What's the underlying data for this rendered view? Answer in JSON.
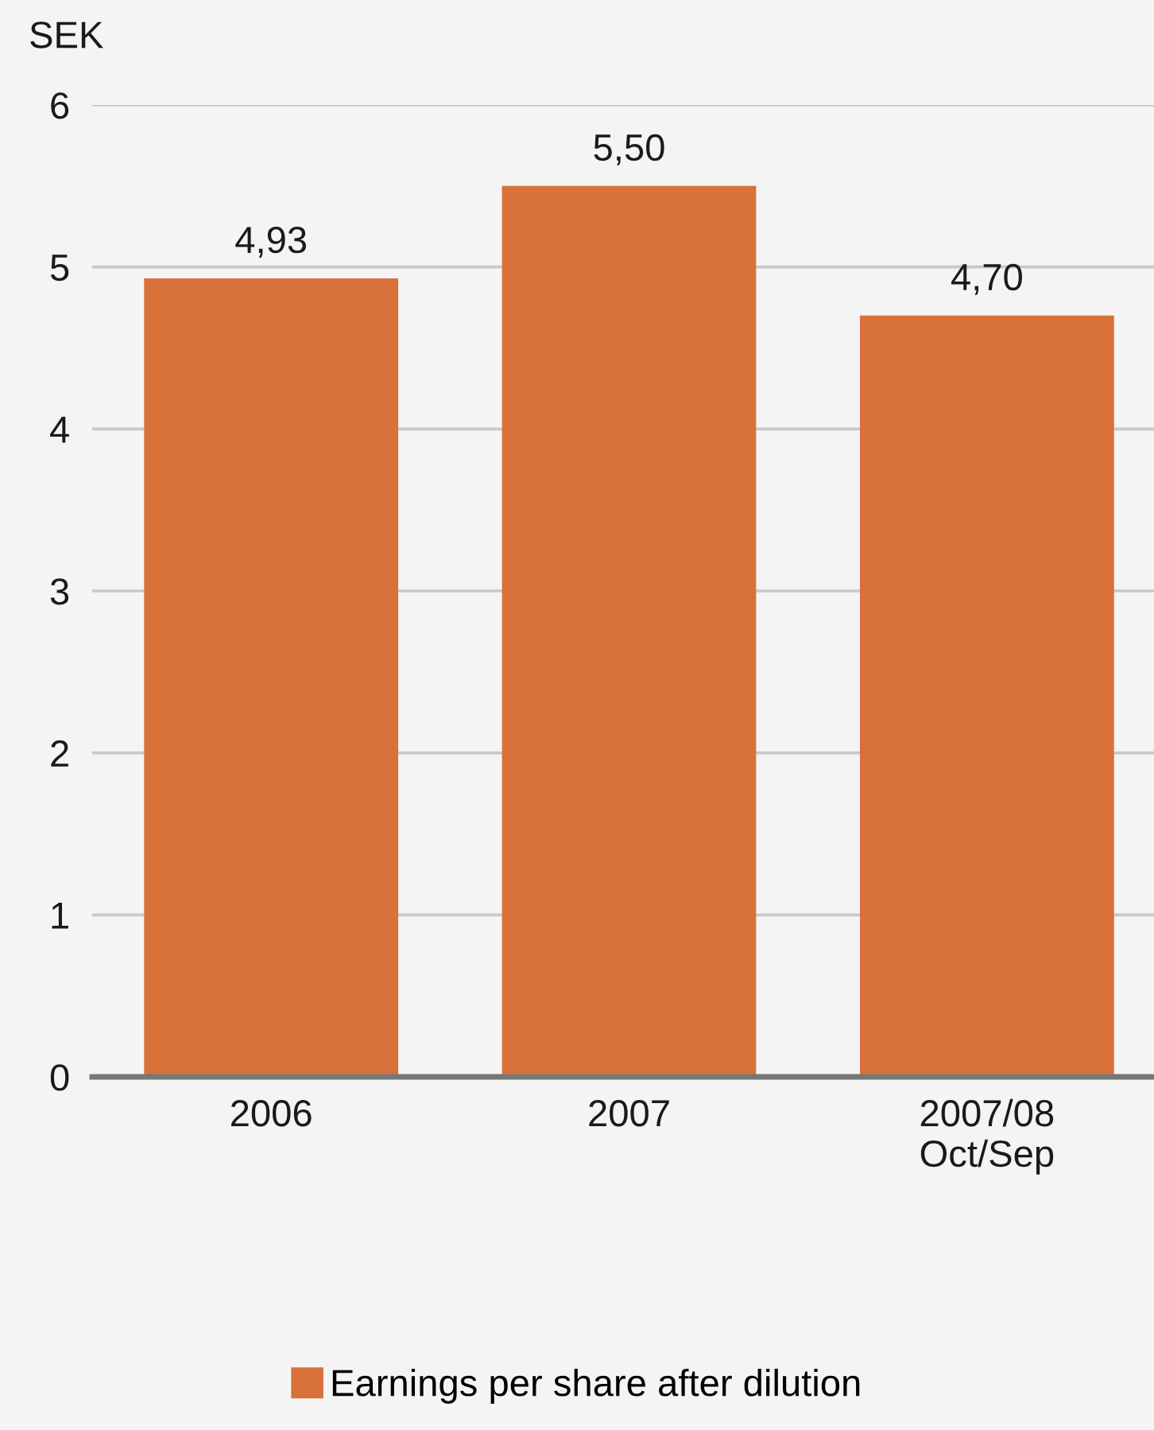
{
  "chart_data": {
    "type": "bar",
    "ylabel": "SEK",
    "categories": [
      "2006",
      "2007",
      "2007/08\nOct/Sep"
    ],
    "series": [
      {
        "name": "Earnings per share after dilution",
        "color": "#d9713b",
        "values": [
          4.93,
          5.5,
          4.7
        ],
        "value_labels": [
          "4,93",
          "5,50",
          "4,70"
        ]
      }
    ],
    "ylim": [
      0,
      6
    ],
    "yticks": [
      0,
      1,
      2,
      3,
      4,
      5,
      6
    ],
    "grid": "y",
    "legend": "bottom"
  }
}
